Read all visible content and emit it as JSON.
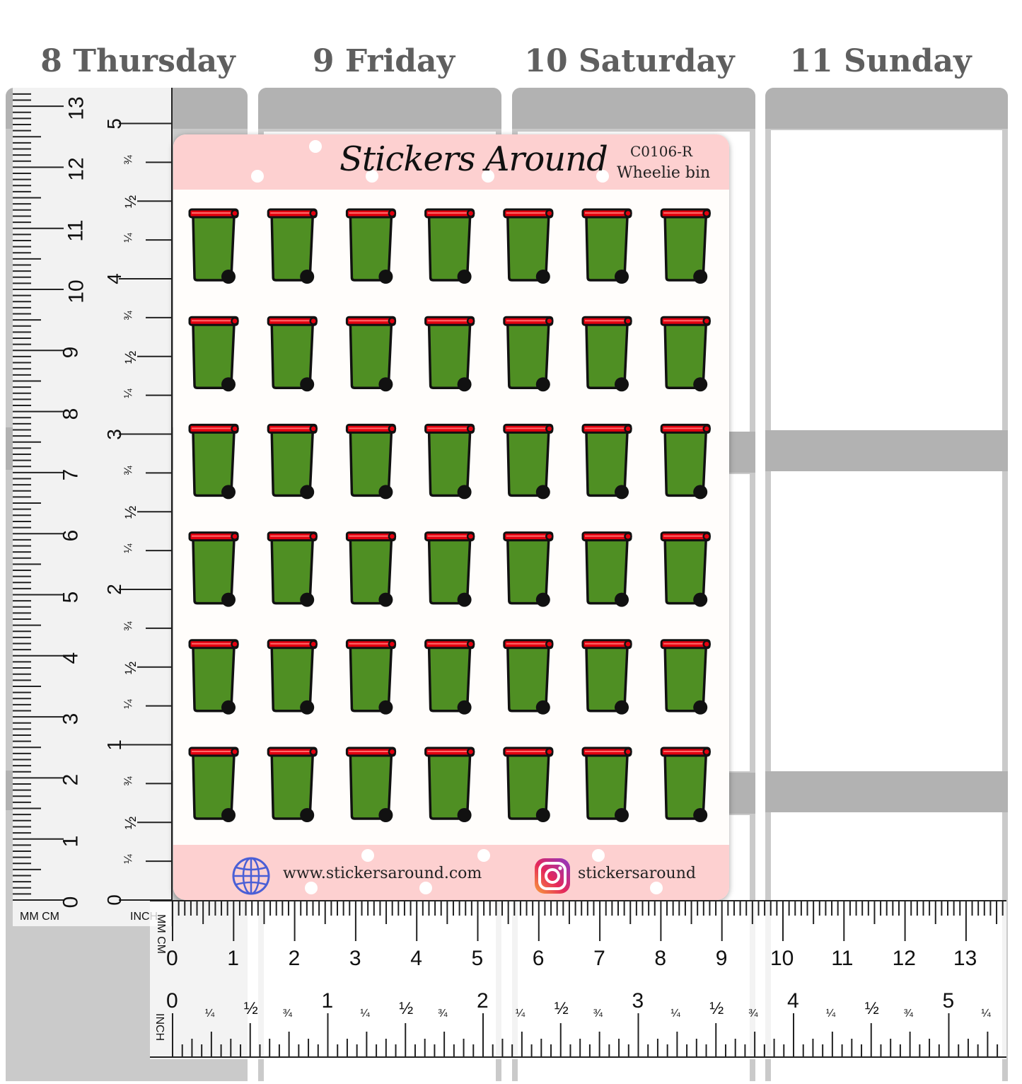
{
  "days": [
    {
      "label": "8 Thursday"
    },
    {
      "label": "9 Friday"
    },
    {
      "label": "10 Saturday"
    },
    {
      "label": "11 Sunday"
    }
  ],
  "sheet": {
    "brand": "Stickers Around",
    "product_code": "C0106-R",
    "product_name": "Wheelie bin",
    "website": "www.stickersaround.com",
    "instagram": "stickersaround",
    "sticker": {
      "icon": "wheelie-bin-icon",
      "rows": 6,
      "columns": 7,
      "body_color": "#4f8f23",
      "lid_color": "#e3000f",
      "wheel_color": "#111111"
    },
    "header_color": "#fdd0d0"
  },
  "vertical_ruler": {
    "unit_left": "MM CM",
    "unit_right": "INCH",
    "cm_labels": [
      "0",
      "1",
      "2",
      "3",
      "4",
      "5",
      "6",
      "7",
      "8",
      "9",
      "10",
      "11",
      "12",
      "13"
    ],
    "inch_labels": [
      "0",
      "1",
      "2",
      "3",
      "4",
      "5"
    ],
    "fraction_labels": [
      "¼",
      "½",
      "¾"
    ]
  },
  "horizontal_ruler": {
    "unit_top": "MM CM",
    "unit_bottom": "INCH",
    "cm_labels": [
      "0",
      "1",
      "2",
      "3",
      "4",
      "5",
      "6",
      "7",
      "8",
      "9",
      "10",
      "11",
      "12",
      "13"
    ],
    "inch_labels": [
      "0",
      "1",
      "2",
      "3",
      "4",
      "5"
    ],
    "fraction_labels": [
      "¼",
      "½",
      "¾"
    ]
  }
}
